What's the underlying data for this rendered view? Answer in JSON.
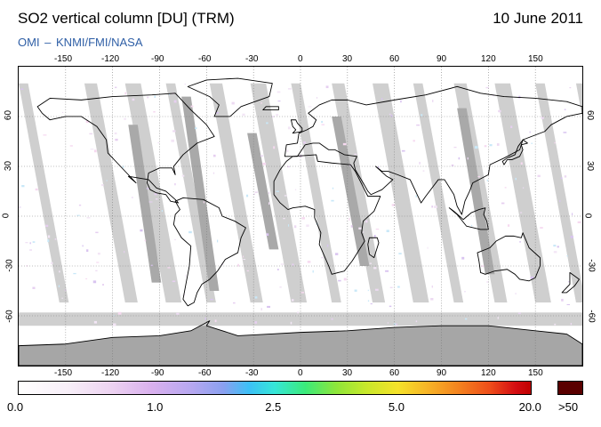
{
  "header": {
    "title": "SO2 vertical column [DU] (TRM)",
    "date": "10 June 2011",
    "credit": "OMI  –  KNMI/FMI/NASA"
  },
  "map": {
    "projection": "equirectangular",
    "lon_range": [
      -180,
      180
    ],
    "lat_range": [
      -90,
      90
    ],
    "lon_ticks": [
      "-150",
      "-120",
      "-90",
      "-60",
      "-30",
      "0",
      "30",
      "60",
      "90",
      "120",
      "150"
    ],
    "lat_ticks": [
      "60",
      "30",
      "0",
      "-30",
      "-60"
    ],
    "colors": {
      "no_data": "#cfcfcf",
      "land_no_data": "#a9a9a9",
      "land_no_data_antarctica": "#a6a6a6",
      "coastline": "#000000",
      "graticule": "#7a7a7a"
    }
  },
  "colorbar": {
    "labels": [
      "0.0",
      "1.0",
      "2.5",
      "5.0",
      "20.0"
    ],
    "overflow_label": ">50",
    "overflow_color": "#5a0000",
    "gradient_stops": [
      "#ffffff",
      "#edd3f1",
      "#b5a7f0",
      "#3cc0f6",
      "#3bea7a",
      "#c9e82b",
      "#f5e22a",
      "#f4821f",
      "#d40d12",
      "#c00000"
    ]
  }
}
